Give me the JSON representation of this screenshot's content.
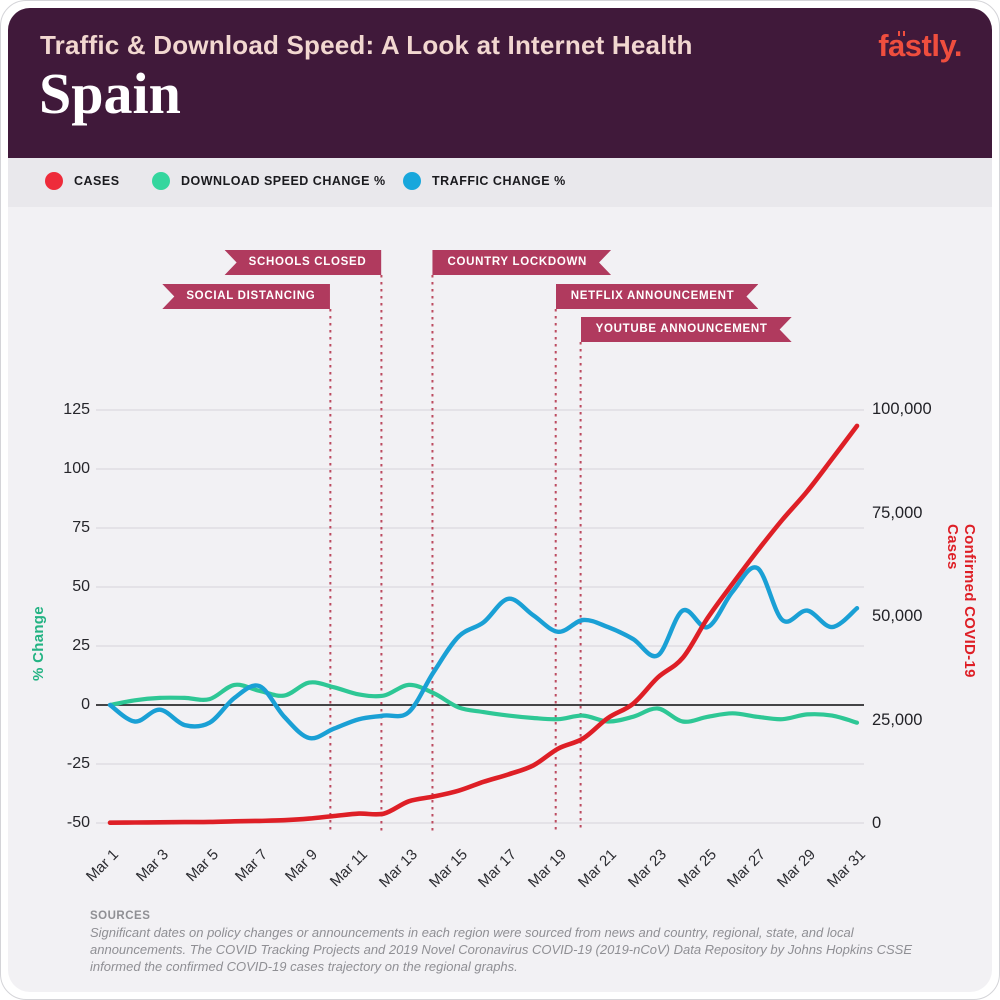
{
  "header": {
    "kicker": "Traffic & Download Speed: A Look at Internet Health",
    "title": "Spain",
    "brand": "fastly."
  },
  "legend": {
    "items": [
      {
        "label": "CASES",
        "color": "#ee2b3a"
      },
      {
        "label": "DOWNLOAD SPEED CHANGE %",
        "color": "#34d69e"
      },
      {
        "label": "TRAFFIC CHANGE %",
        "color": "#18a7dc"
      }
    ]
  },
  "annotations": {
    "flag_color": "#b03a5e",
    "line_color": "#bc4b60",
    "events": [
      {
        "label": "SCHOOLS CLOSED",
        "day": 11.9,
        "side": "left",
        "row": 0
      },
      {
        "label": "SOCIAL DISTANCING",
        "day": 9.85,
        "side": "left",
        "row": 1
      },
      {
        "label": "COUNTRY LOCKDOWN",
        "day": 13.95,
        "side": "right",
        "row": 0
      },
      {
        "label": "NETFLIX ANNOUNCEMENT",
        "day": 18.9,
        "side": "right",
        "row": 1
      },
      {
        "label": "YOUTUBE ANNOUNCEMENT",
        "day": 19.9,
        "side": "right",
        "row": 2
      }
    ]
  },
  "chart_data": {
    "type": "line",
    "x_unit": "Day of March 2020",
    "x": [
      1,
      2,
      3,
      4,
      5,
      6,
      7,
      8,
      9,
      10,
      11,
      12,
      13,
      14,
      15,
      16,
      17,
      18,
      19,
      20,
      21,
      22,
      23,
      24,
      25,
      26,
      27,
      28,
      29,
      30,
      31
    ],
    "x_tick_days": [
      1,
      3,
      5,
      7,
      9,
      11,
      13,
      15,
      17,
      19,
      21,
      23,
      25,
      27,
      29,
      31
    ],
    "x_tick_labels": [
      "Mar 1",
      "Mar 3",
      "Mar 5",
      "Mar 7",
      "Mar 9",
      "Mar 11",
      "Mar 13",
      "Mar 15",
      "Mar 17",
      "Mar 19",
      "Mar 21",
      "Mar 23",
      "Mar 25",
      "Mar 27",
      "Mar 29",
      "Mar 31"
    ],
    "left_axis": {
      "title": "% Change",
      "ticks": [
        125,
        100,
        75,
        50,
        25,
        0,
        -25,
        -50
      ],
      "range": [
        -50,
        125
      ],
      "color": "#24b383"
    },
    "right_axis": {
      "title": "Confirmed COVID-19 Cases",
      "tick_values": [
        100000,
        75000,
        50000,
        25000,
        0
      ],
      "tick_labels": [
        "100,000",
        "75,000",
        "50,000",
        "25,000",
        "0"
      ],
      "range": [
        0,
        100000
      ],
      "color": "#de1f26"
    },
    "grid": true,
    "legend_position": "top",
    "series": [
      {
        "name": "Cases",
        "axis": "right",
        "color": "#de1f26",
        "values": [
          84,
          120,
          165,
          222,
          259,
          400,
          500,
          673,
          1073,
          1695,
          2277,
          2277,
          5232,
          6391,
          7798,
          9942,
          11748,
          13910,
          17963,
          20410,
          25374,
          28768,
          35136,
          39885,
          49515,
          57786,
          65719,
          73235,
          80110,
          87956,
          95923
        ]
      },
      {
        "name": "Download Speed Change %",
        "axis": "left",
        "color": "#2ec795",
        "values": [
          0,
          2,
          3,
          3,
          2.5,
          8.5,
          6,
          4,
          9.5,
          7.5,
          4.5,
          4,
          8.5,
          5,
          -1,
          -3,
          -4.5,
          -5.5,
          -6,
          -4.5,
          -7,
          -5,
          -1.5,
          -7,
          -5,
          -3.5,
          -5,
          -6,
          -4,
          -4.5,
          -7.5
        ]
      },
      {
        "name": "Traffic Change %",
        "axis": "left",
        "color": "#1aa0d5",
        "values": [
          0,
          -7,
          -2,
          -8.5,
          -7.5,
          3,
          8,
          -5,
          -14,
          -10,
          -6,
          -4.5,
          -3,
          14,
          29,
          35,
          45,
          38,
          31,
          36,
          33,
          28,
          21,
          40,
          33,
          48,
          58,
          36,
          40,
          33,
          41
        ]
      }
    ]
  },
  "sources": {
    "heading": "SOURCES",
    "body": "Significant dates on policy changes or announcements in each region were sourced from news and country, regional, state, and local announcements. The COVID Tracking Projects and 2019 Novel Coronavirus COVID-19 (2019-nCoV) Data Repository by Johns Hopkins CSSE informed the confirmed COVID-19 cases trajectory on the regional graphs."
  }
}
